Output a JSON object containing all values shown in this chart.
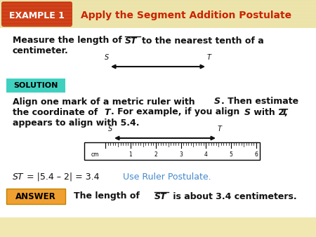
{
  "title": "Apply the Segment Addition Postulate",
  "example_label": "EXAMPLE 1",
  "example_bg": "#cc2200",
  "title_color": "#cc2200",
  "header_bg": "#f0e8b0",
  "body_bg": "#ffffff",
  "solution_label": "SOLUTION",
  "solution_bg": "#40d0c0",
  "answer_label": "ANSWER",
  "answer_bg": "#f0a030",
  "body_text_color": "#111111",
  "blue_text_color": "#4488cc",
  "ruler_labels": [
    "cm",
    "1",
    "2",
    "3",
    "4",
    "5",
    "6"
  ]
}
